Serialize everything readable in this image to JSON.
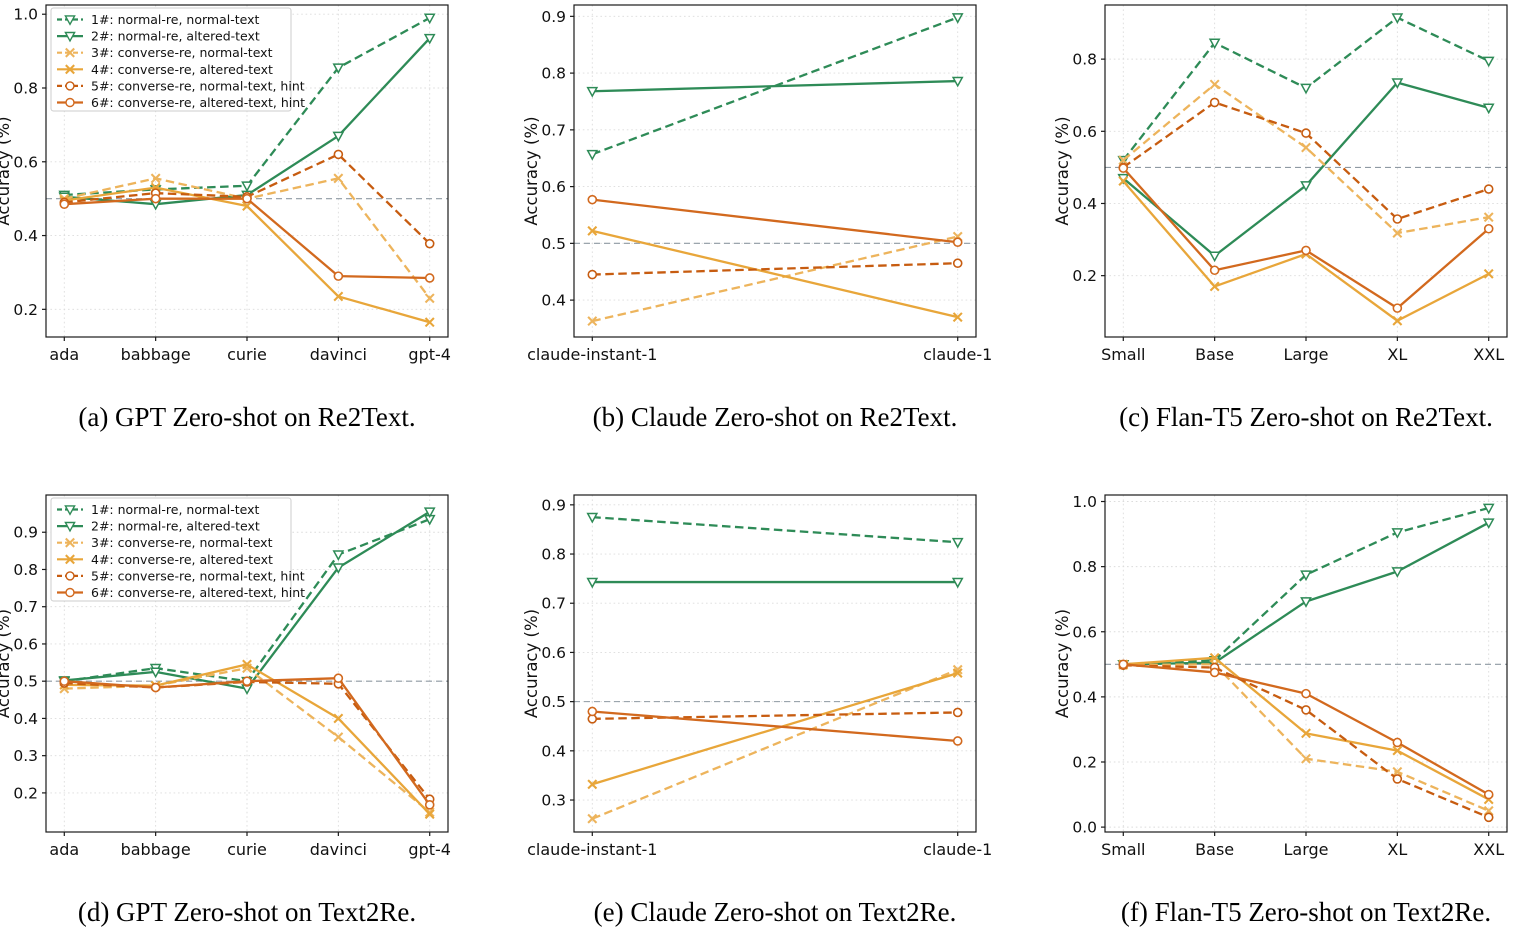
{
  "figure": {
    "ylabel": "Accuracy (%)",
    "baseline_value": 0.5,
    "colors": {
      "green": "#2E8B57",
      "yellow_light": "#EDB45C",
      "yellow": "#E8A63A",
      "orange_dark": "#C75C10",
      "orange": "#D2691E",
      "baseline_gray": "#8f9aa3",
      "grid_gray": "#dcdcdc",
      "axis_black": "#1a1a1a"
    },
    "series_styles": [
      {
        "color": "#2E8B57",
        "dash": true,
        "marker": "triangle-down"
      },
      {
        "color": "#2E8B57",
        "dash": false,
        "marker": "triangle-down"
      },
      {
        "color": "#EDB45C",
        "dash": true,
        "marker": "x"
      },
      {
        "color": "#E8A63A",
        "dash": false,
        "marker": "x"
      },
      {
        "color": "#C75C10",
        "dash": true,
        "marker": "circle"
      },
      {
        "color": "#D2691E",
        "dash": false,
        "marker": "circle"
      }
    ],
    "legend_labels": [
      "1#: normal-re, normal-text",
      "2#: normal-re, altered-text",
      "3#: converse-re, normal-text",
      "4#: converse-re, altered-text",
      "5#: converse-re, normal-text, hint",
      "6#: converse-re, altered-text, hint"
    ]
  },
  "chart_data": [
    {
      "type": "line",
      "id": "a",
      "caption": "(a) GPT Zero-shot on Re2Text.",
      "categories": [
        "ada",
        "babbage",
        "curie",
        "davinci",
        "gpt-4"
      ],
      "ylabel": "Accuracy (%)",
      "ylim": [
        0.125,
        1.025
      ],
      "yticks": [
        0.2,
        0.4,
        0.6,
        0.8,
        1.0
      ],
      "baseline": 0.5,
      "legend": true,
      "grid": true,
      "series": [
        {
          "name": "1#: normal-re, normal-text",
          "values": [
            0.51,
            0.525,
            0.535,
            0.855,
            0.99
          ]
        },
        {
          "name": "2#: normal-re, altered-text",
          "values": [
            0.505,
            0.485,
            0.51,
            0.67,
            0.935
          ]
        },
        {
          "name": "3#: converse-re, normal-text",
          "values": [
            0.5,
            0.555,
            0.5,
            0.555,
            0.23
          ]
        },
        {
          "name": "4#: converse-re, altered-text",
          "values": [
            0.495,
            0.53,
            0.48,
            0.235,
            0.165
          ]
        },
        {
          "name": "5#: converse-re, normal-text, hint",
          "values": [
            0.49,
            0.515,
            0.505,
            0.62,
            0.378
          ]
        },
        {
          "name": "6#: converse-re, altered-text, hint",
          "values": [
            0.485,
            0.5,
            0.5,
            0.29,
            0.285
          ]
        }
      ]
    },
    {
      "type": "line",
      "id": "b",
      "caption": "(b) Claude Zero-shot on Re2Text.",
      "categories": [
        "claude-instant-1",
        "claude-1"
      ],
      "ylabel": "Accuracy (%)",
      "ylim": [
        0.335,
        0.92
      ],
      "yticks": [
        0.4,
        0.5,
        0.6,
        0.7,
        0.8,
        0.9
      ],
      "baseline": 0.5,
      "legend": false,
      "grid": true,
      "series": [
        {
          "name": "1#: normal-re, normal-text",
          "values": [
            0.657,
            0.898
          ]
        },
        {
          "name": "2#: normal-re, altered-text",
          "values": [
            0.768,
            0.786
          ]
        },
        {
          "name": "3#: converse-re, normal-text",
          "values": [
            0.363,
            0.512
          ]
        },
        {
          "name": "4#: converse-re, altered-text",
          "values": [
            0.522,
            0.37
          ]
        },
        {
          "name": "5#: converse-re, normal-text, hint",
          "values": [
            0.445,
            0.465
          ]
        },
        {
          "name": "6#: converse-re, altered-text, hint",
          "values": [
            0.577,
            0.502
          ]
        }
      ]
    },
    {
      "type": "line",
      "id": "c",
      "caption": "(c) Flan-T5 Zero-shot on Re2Text.",
      "categories": [
        "Small",
        "Base",
        "Large",
        "XL",
        "XXL"
      ],
      "ylabel": "Accuracy (%)",
      "ylim": [
        0.03,
        0.95
      ],
      "yticks": [
        0.2,
        0.4,
        0.6,
        0.8
      ],
      "baseline": 0.5,
      "legend": false,
      "grid": true,
      "series": [
        {
          "name": "1#: normal-re, normal-text",
          "values": [
            0.52,
            0.845,
            0.72,
            0.915,
            0.795
          ]
        },
        {
          "name": "2#: normal-re, altered-text",
          "values": [
            0.47,
            0.255,
            0.45,
            0.735,
            0.665
          ]
        },
        {
          "name": "3#: converse-re, normal-text",
          "values": [
            0.52,
            0.73,
            0.555,
            0.318,
            0.362
          ]
        },
        {
          "name": "4#: converse-re, altered-text",
          "values": [
            0.462,
            0.17,
            0.26,
            0.075,
            0.205
          ]
        },
        {
          "name": "5#: converse-re, normal-text, hint",
          "values": [
            0.5,
            0.68,
            0.595,
            0.357,
            0.44
          ]
        },
        {
          "name": "6#: converse-re, altered-text, hint",
          "values": [
            0.498,
            0.215,
            0.27,
            0.11,
            0.33
          ]
        }
      ]
    },
    {
      "type": "line",
      "id": "d",
      "caption": "(d) GPT Zero-shot on Text2Re.",
      "categories": [
        "ada",
        "babbage",
        "curie",
        "davinci",
        "gpt-4"
      ],
      "ylabel": "Accuracy (%)",
      "ylim": [
        0.095,
        1.0
      ],
      "yticks": [
        0.2,
        0.3,
        0.4,
        0.5,
        0.6,
        0.7,
        0.8,
        0.9
      ],
      "baseline": 0.5,
      "legend": true,
      "grid": true,
      "series": [
        {
          "name": "1#: normal-re, normal-text",
          "values": [
            0.5,
            0.535,
            0.5,
            0.84,
            0.935
          ]
        },
        {
          "name": "2#: normal-re, altered-text",
          "values": [
            0.502,
            0.525,
            0.48,
            0.805,
            0.955
          ]
        },
        {
          "name": "3#: converse-re, normal-text",
          "values": [
            0.48,
            0.488,
            0.535,
            0.35,
            0.148
          ]
        },
        {
          "name": "4#: converse-re, altered-text",
          "values": [
            0.49,
            0.488,
            0.545,
            0.4,
            0.143
          ]
        },
        {
          "name": "5#: converse-re, normal-text, hint",
          "values": [
            0.495,
            0.483,
            0.498,
            0.493,
            0.183
          ]
        },
        {
          "name": "6#: converse-re, altered-text, hint",
          "values": [
            0.5,
            0.483,
            0.5,
            0.508,
            0.168
          ]
        }
      ]
    },
    {
      "type": "line",
      "id": "e",
      "caption": "(e) Claude Zero-shot on Text2Re.",
      "categories": [
        "claude-instant-1",
        "claude-1"
      ],
      "ylabel": "Accuracy (%)",
      "ylim": [
        0.235,
        0.92
      ],
      "yticks": [
        0.3,
        0.4,
        0.5,
        0.6,
        0.7,
        0.8,
        0.9
      ],
      "baseline": 0.5,
      "legend": false,
      "grid": true,
      "series": [
        {
          "name": "1#: normal-re, normal-text",
          "values": [
            0.875,
            0.824
          ]
        },
        {
          "name": "2#: normal-re, altered-text",
          "values": [
            0.743,
            0.743
          ]
        },
        {
          "name": "3#: converse-re, normal-text",
          "values": [
            0.262,
            0.565
          ]
        },
        {
          "name": "4#: converse-re, altered-text",
          "values": [
            0.332,
            0.558
          ]
        },
        {
          "name": "5#: converse-re, normal-text, hint",
          "values": [
            0.465,
            0.478
          ]
        },
        {
          "name": "6#: converse-re, altered-text, hint",
          "values": [
            0.48,
            0.42
          ]
        }
      ]
    },
    {
      "type": "line",
      "id": "f",
      "caption": "(f) Flan-T5 Zero-shot on Text2Re.",
      "categories": [
        "Small",
        "Base",
        "Large",
        "XL",
        "XXL"
      ],
      "ylabel": "Accuracy (%)",
      "ylim": [
        -0.015,
        1.02
      ],
      "yticks": [
        0.0,
        0.2,
        0.4,
        0.6,
        0.8,
        1.0
      ],
      "baseline": 0.5,
      "legend": false,
      "grid": true,
      "series": [
        {
          "name": "1#: normal-re, normal-text",
          "values": [
            0.5,
            0.512,
            0.775,
            0.905,
            0.98
          ]
        },
        {
          "name": "2#: normal-re, altered-text",
          "values": [
            0.5,
            0.505,
            0.693,
            0.785,
            0.935
          ]
        },
        {
          "name": "3#: converse-re, normal-text",
          "values": [
            0.498,
            0.5,
            0.21,
            0.17,
            0.05
          ]
        },
        {
          "name": "4#: converse-re, altered-text",
          "values": [
            0.5,
            0.52,
            0.288,
            0.235,
            0.085
          ]
        },
        {
          "name": "5#: converse-re, normal-text, hint",
          "values": [
            0.497,
            0.49,
            0.36,
            0.148,
            0.03
          ]
        },
        {
          "name": "6#: converse-re, altered-text, hint",
          "values": [
            0.5,
            0.475,
            0.41,
            0.26,
            0.1
          ]
        }
      ]
    }
  ]
}
